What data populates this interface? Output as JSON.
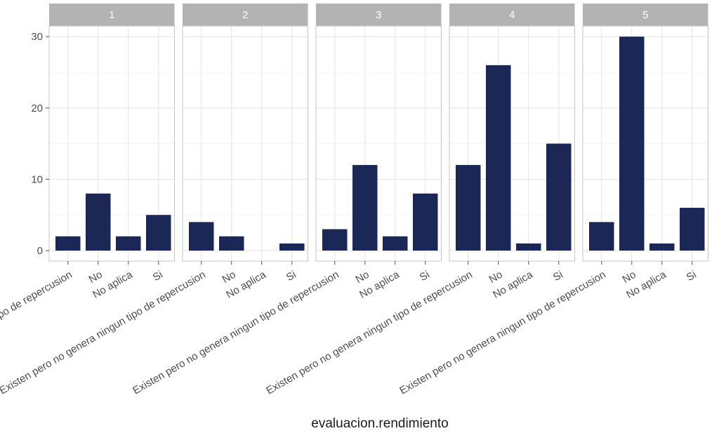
{
  "chart_data": {
    "type": "bar",
    "facet_variable": "panel",
    "panels": [
      "1",
      "2",
      "3",
      "4",
      "5"
    ],
    "categories": [
      "Existen pero no genera ningun tipo de repercusion",
      "No",
      "No aplica",
      "Si"
    ],
    "series": [
      {
        "name": "1",
        "values": [
          2,
          8,
          2,
          5
        ]
      },
      {
        "name": "2",
        "values": [
          4,
          2,
          0,
          1
        ]
      },
      {
        "name": "3",
        "values": [
          3,
          12,
          2,
          8
        ]
      },
      {
        "name": "4",
        "values": [
          12,
          26,
          1,
          15
        ]
      },
      {
        "name": "5",
        "values": [
          4,
          30,
          1,
          6
        ]
      }
    ],
    "title": "",
    "xlabel": "evaluacion.rendimiento",
    "ylabel": "",
    "ylim": [
      0,
      32
    ],
    "yticks": [
      0,
      10,
      20,
      30
    ],
    "bar_color": "#1b2754",
    "strip_color": "#b3b3b3",
    "grid": true
  }
}
